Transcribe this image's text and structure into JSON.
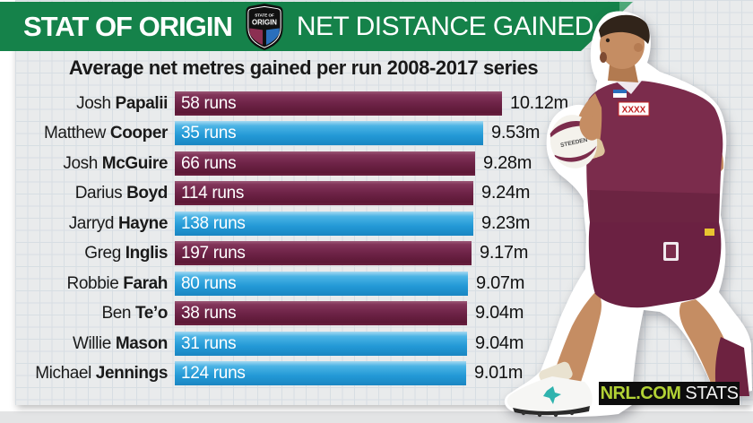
{
  "header": {
    "brand": "STAT OF ORIGIN",
    "title": "NET DISTANCE GAINED",
    "logo": {
      "line1": "STATE OF",
      "line2": "ORIGIN"
    },
    "colors": {
      "banner_green": "#15824a",
      "banner_cap_green": "#4fa878"
    }
  },
  "chart_data": {
    "type": "bar",
    "orientation": "horizontal",
    "title": "Average net metres gained per run 2008-2017 series",
    "unit": "m",
    "axis_max": 10.12,
    "legend": "bar length proportional to average net metres gained per run; bar label shows number of runs",
    "categories": [
      "Josh Papalii",
      "Matthew Cooper",
      "Josh McGuire",
      "Darius Boyd",
      "Jarryd Hayne",
      "Greg Inglis",
      "Robbie Farah",
      "Ben Te’o",
      "Willie Mason",
      "Michael Jennings"
    ],
    "values": [
      10.12,
      9.53,
      9.28,
      9.24,
      9.23,
      9.17,
      9.07,
      9.04,
      9.04,
      9.01
    ],
    "rows": [
      {
        "first": "Josh",
        "last": "Papalii",
        "runs": "58 runs",
        "value": 10.12,
        "label": "10.12m",
        "color": "maroon"
      },
      {
        "first": "Matthew",
        "last": "Cooper",
        "runs": "35 runs",
        "value": 9.53,
        "label": "9.53m",
        "color": "blue"
      },
      {
        "first": "Josh",
        "last": "McGuire",
        "runs": "66 runs",
        "value": 9.28,
        "label": "9.28m",
        "color": "maroon"
      },
      {
        "first": "Darius",
        "last": "Boyd",
        "runs": "114 runs",
        "value": 9.24,
        "label": "9.24m",
        "color": "maroon"
      },
      {
        "first": "Jarryd",
        "last": "Hayne",
        "runs": "138 runs",
        "value": 9.23,
        "label": "9.23m",
        "color": "blue"
      },
      {
        "first": "Greg",
        "last": "Inglis",
        "runs": "197 runs",
        "value": 9.17,
        "label": "9.17m",
        "color": "maroon"
      },
      {
        "first": "Robbie",
        "last": "Farah",
        "runs": "80 runs",
        "value": 9.07,
        "label": "9.07m",
        "color": "blue"
      },
      {
        "first": "Ben",
        "last": "Te’o",
        "runs": "38 runs",
        "value": 9.04,
        "label": "9.04m",
        "color": "maroon"
      },
      {
        "first": "Willie",
        "last": "Mason",
        "runs": "31 runs",
        "value": 9.04,
        "label": "9.04m",
        "color": "blue"
      },
      {
        "first": "Michael",
        "last": "Jennings",
        "runs": "124 runs",
        "value": 9.01,
        "label": "9.01m",
        "color": "blue"
      }
    ],
    "colors": {
      "maroon": "#6f2448",
      "blue": "#2399d6",
      "grid_bg": "#e9ebec",
      "grid_line": "#d7dee3"
    }
  },
  "player": {
    "ball_text": "STEEDEN",
    "jersey_sponsor": "XXXX"
  },
  "footer": {
    "site": "NRL.COM",
    "stats": "STATS",
    "accent": "#b2d235"
  }
}
